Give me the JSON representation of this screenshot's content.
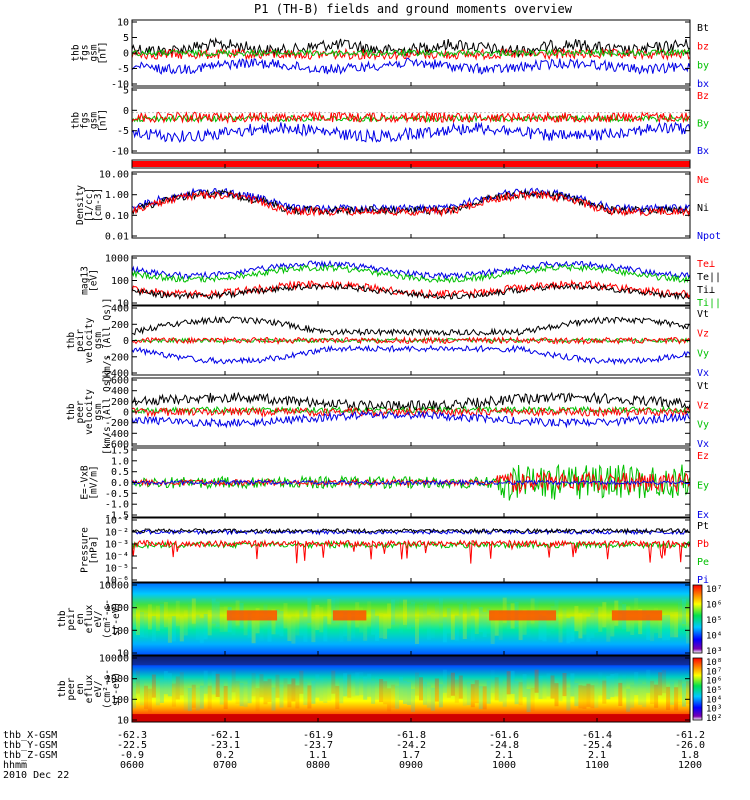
{
  "title": "P1 (TH-B) fields and ground moments overview",
  "colors": {
    "black": "#000000",
    "red": "#ff0000",
    "green": "#00e000",
    "blue": "#0000e6"
  },
  "panels": [
    {
      "id": "fgs",
      "ylabel": [
        "thb",
        "fgs",
        "gsm",
        "[nT]"
      ],
      "ticks": [
        "10",
        "5",
        "0",
        "-5",
        "-10"
      ],
      "ylim": [
        -10,
        10
      ],
      "scale": "linear",
      "legend": [
        {
          "name": "Bt",
          "color": "#000000"
        },
        {
          "name": "bz",
          "color": "#ff0000"
        },
        {
          "name": "by",
          "color": "#00c000"
        },
        {
          "name": "bx",
          "color": "#0000e6"
        }
      ]
    },
    {
      "id": "fgs_gsm",
      "ylabel": [
        "thb",
        "fgs",
        "gsm",
        "[nT]"
      ],
      "ticks": [
        "5",
        "0",
        "-5",
        "-10"
      ],
      "ylim": [
        -13,
        8
      ],
      "scale": "linear",
      "legend": [
        {
          "name": "Bz",
          "color": "#ff0000"
        },
        {
          "name": "By",
          "color": "#00c000"
        },
        {
          "name": "Bx",
          "color": "#0000e6"
        }
      ]
    },
    {
      "id": "flag",
      "ylabel": [],
      "ticks": [],
      "legend": []
    },
    {
      "id": "density",
      "ylabel": [
        "Density",
        "[1/cc]",
        "[cm-3]"
      ],
      "ticks": [
        "10.00",
        "1.00",
        "0.10",
        "0.01"
      ],
      "ylim": [
        0.01,
        10
      ],
      "scale": "log",
      "legend": [
        {
          "name": "Ne",
          "color": "#ff0000"
        },
        {
          "name": "Ni",
          "color": "#000000"
        },
        {
          "name": "Npot",
          "color": "#0000e6"
        }
      ]
    },
    {
      "id": "temp",
      "ylabel": [
        "mag13",
        "[eV]"
      ],
      "ticks": [
        "1000",
        "100",
        "10"
      ],
      "ylim": [
        5,
        3000
      ],
      "scale": "log",
      "legend": [
        {
          "name": "Te⊥",
          "color": "#ff0000"
        },
        {
          "name": "Te||",
          "color": "#000000"
        },
        {
          "name": "Ti⊥",
          "color": "#000000"
        },
        {
          "name": "Ti||",
          "color": "#00c000"
        }
      ]
    },
    {
      "id": "peir_v",
      "ylabel": [
        "thb",
        "peir",
        "velocity",
        "gsm",
        "[km/s (All Qs)]"
      ],
      "ticks": [
        "400",
        "200",
        "0",
        "-200",
        "-400"
      ],
      "ylim": [
        -400,
        400
      ],
      "scale": "linear",
      "legend": [
        {
          "name": "Vt",
          "color": "#000000"
        },
        {
          "name": "Vz",
          "color": "#ff0000"
        },
        {
          "name": "Vy",
          "color": "#00c000"
        },
        {
          "name": "Vx",
          "color": "#0000e6"
        }
      ]
    },
    {
      "id": "peer_v",
      "ylabel": [
        "thb",
        "peer",
        "velocity",
        "gsm",
        "[km/s (All Qs)]"
      ],
      "ticks": [
        "600",
        "400",
        "200",
        "0",
        "-200",
        "-400",
        "-600"
      ],
      "ylim": [
        -600,
        600
      ],
      "scale": "linear",
      "legend": [
        {
          "name": "Vt",
          "color": "#000000"
        },
        {
          "name": "Vz",
          "color": "#ff0000"
        },
        {
          "name": "Vy",
          "color": "#00c000"
        },
        {
          "name": "Vx",
          "color": "#0000e6"
        }
      ]
    },
    {
      "id": "efield",
      "ylabel": [
        "E=-VxB",
        "[mV/m]"
      ],
      "ticks": [
        "1.5",
        "1.0",
        "0.5",
        "0.0",
        "-0.5",
        "-1.0",
        "-1.5"
      ],
      "ylim": [
        -1.5,
        1.5
      ],
      "scale": "linear",
      "legend": [
        {
          "name": "Ez",
          "color": "#ff0000"
        },
        {
          "name": "Ey",
          "color": "#00c000"
        },
        {
          "name": "Ex",
          "color": "#0000e6"
        }
      ]
    },
    {
      "id": "pressure",
      "ylabel": [
        "Pressure",
        "[nPa]"
      ],
      "ticks": [
        "10⁻¹",
        "10⁻²",
        "10⁻³",
        "10⁻⁴",
        "10⁻⁵",
        "10⁻⁶"
      ],
      "ylim": [
        -6,
        -1
      ],
      "scale": "log",
      "legend": [
        {
          "name": "Pt",
          "color": "#000000"
        },
        {
          "name": "Pb",
          "color": "#ff0000"
        },
        {
          "name": "Pe",
          "color": "#00c000"
        },
        {
          "name": "Pi",
          "color": "#0000e6"
        }
      ]
    },
    {
      "id": "peir_spec",
      "ylabel": [
        "thb",
        "peir",
        "en",
        "eflux",
        "eV/",
        "(cm²-s-",
        "sr-eV)"
      ],
      "ticks": [
        "10000",
        "1000",
        "100",
        "10"
      ],
      "ylim": [
        5,
        30000
      ],
      "scale": "log",
      "colorbar": [
        "10⁷",
        "10⁶",
        "10⁵",
        "10⁴",
        "10³"
      ],
      "legend": []
    },
    {
      "id": "peer_spec",
      "ylabel": [
        "thb",
        "peer",
        "en",
        "eflux",
        "eV/",
        "(cm²-s-",
        "sr-eV)"
      ],
      "ticks": [
        "10000",
        "1000",
        "100",
        "10"
      ],
      "ylim": [
        5,
        30000
      ],
      "scale": "log",
      "colorbar": [
        "10⁸",
        "10⁷",
        "10⁶",
        "10⁵",
        "10⁴",
        "10³",
        "10²"
      ],
      "legend": []
    }
  ],
  "xaxis": {
    "rows": [
      {
        "label": "thb_X-GSM",
        "values": [
          "-62.3",
          "-62.1",
          "-61.9",
          "-61.8",
          "-61.6",
          "-61.4",
          "-61.2"
        ]
      },
      {
        "label": "thb_Y-GSM",
        "values": [
          "-22.5",
          "-23.1",
          "-23.7",
          "-24.2",
          "-24.8",
          "-25.4",
          "-26.0"
        ]
      },
      {
        "label": "thb_Z-GSM",
        "values": [
          "-0.9",
          "0.2",
          "1.1",
          "1.7",
          "2.1",
          "2.1",
          "1.8"
        ]
      },
      {
        "label": "hhmm",
        "values": [
          "0600",
          "0700",
          "0800",
          "0900",
          "1000",
          "1100",
          "1200"
        ]
      }
    ],
    "date": "2010 Dec 22"
  }
}
